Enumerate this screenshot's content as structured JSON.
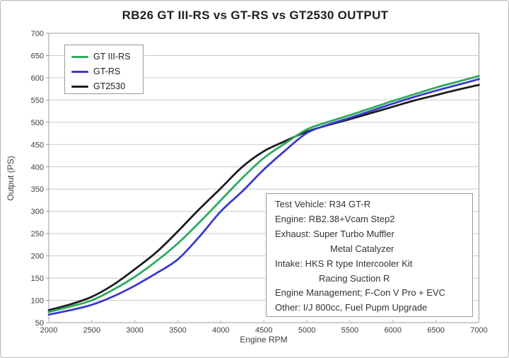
{
  "chart_data": {
    "type": "line",
    "title": "RB26 GT III-RS vs GT-RS vs GT2530 OUTPUT",
    "xlabel": "Engine RPM",
    "ylabel": "Output (PS)",
    "xlim": [
      2000,
      7000
    ],
    "ylim": [
      50,
      700
    ],
    "x_ticks": [
      2000,
      2500,
      3000,
      3500,
      4000,
      4500,
      5000,
      5500,
      6000,
      6500,
      7000
    ],
    "y_ticks": [
      50,
      100,
      150,
      200,
      250,
      300,
      350,
      400,
      450,
      500,
      550,
      600,
      650,
      700
    ],
    "grid": "horizontal",
    "legend_position": "top-left",
    "x": [
      2000,
      2250,
      2500,
      2750,
      3000,
      3250,
      3500,
      3750,
      4000,
      4250,
      4500,
      4750,
      5000,
      5250,
      5500,
      5750,
      6000,
      6250,
      6500,
      6750,
      7000
    ],
    "series": [
      {
        "name": "GT III-RS",
        "color": "#2cab5e",
        "values": [
          74,
          86,
          100,
          124,
          153,
          188,
          228,
          275,
          325,
          375,
          420,
          453,
          484,
          501,
          516,
          532,
          548,
          563,
          578,
          591,
          604
        ]
      },
      {
        "name": "GT-RS",
        "color": "#3a3acc",
        "values": [
          68,
          78,
          90,
          109,
          133,
          161,
          192,
          243,
          300,
          345,
          394,
          437,
          476,
          495,
          510,
          526,
          542,
          557,
          571,
          584,
          597
        ]
      },
      {
        "name": "GT2530",
        "color": "#1c1c1c",
        "values": [
          78,
          91,
          108,
          135,
          170,
          208,
          255,
          305,
          352,
          400,
          435,
          458,
          479,
          494,
          507,
          521,
          535,
          549,
          561,
          573,
          584
        ]
      }
    ]
  },
  "info_box": {
    "lines": [
      {
        "text": "Test Vehicle: R34 GT-R",
        "indent": 0
      },
      {
        "text": "Engine: RB2.38+Vcam Step2",
        "indent": 0
      },
      {
        "text": "Exhaust: Super Turbo Muffler",
        "indent": 0
      },
      {
        "text": "Metal Catalyzer",
        "indent": 78
      },
      {
        "text": "Intake: HKS R type Intercooler Kit",
        "indent": 0
      },
      {
        "text": "Racing Suction R",
        "indent": 62
      },
      {
        "text": "Engine Management; F-Con V Pro + EVC",
        "indent": 0
      },
      {
        "text": "Other: I/J 800cc, Fuel Pupm Upgrade",
        "indent": 0
      }
    ]
  },
  "colors": {
    "grid": "#c9c9c9",
    "axis_frame": "#9a9a9a",
    "x_tick_mark": "#b5b5b5",
    "y_tick_mark": "#9a9a9a",
    "tick_text": "#3c3c3c",
    "title_text": "#1f1f1f",
    "box_border": "#9a9a9a",
    "background": "#ffffff"
  }
}
